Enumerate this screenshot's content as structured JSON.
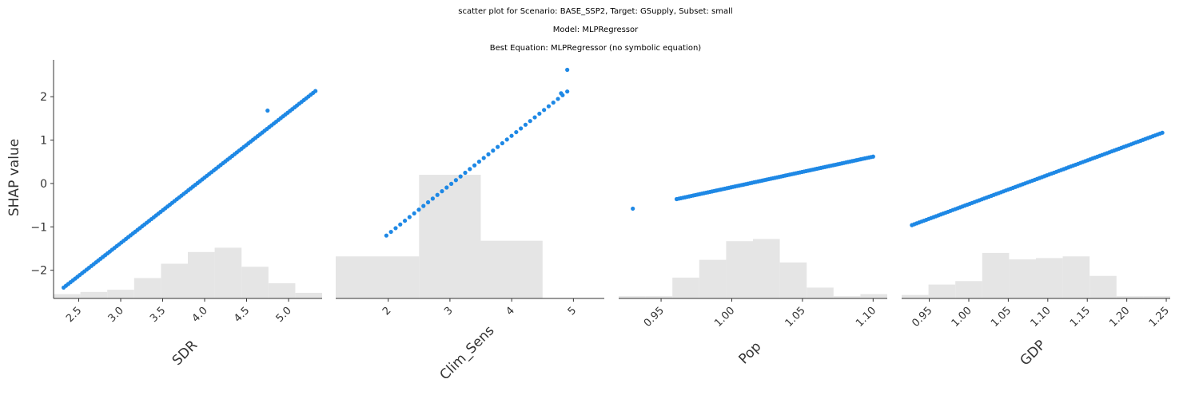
{
  "title": {
    "line1": "scatter plot for Scenario: BASE_SSP2, Target: GSupply, Subset: small",
    "line2": "Model: MLPRegressor",
    "line3": "Best Equation: MLPRegressor (no symbolic equation)"
  },
  "colors": {
    "points": "#1e88e5",
    "histogram": "#e5e5e5",
    "axis": "#333333"
  },
  "chart_data": [
    {
      "type": "scatter",
      "xlabel": "SDR",
      "ylabel": "SHAP value",
      "xlim": [
        2.2,
        5.4
      ],
      "ylim": [
        -2.65,
        2.85
      ],
      "xticks": [
        2.5,
        3.0,
        3.5,
        4.0,
        4.5,
        5.0
      ],
      "xtick_labels": [
        "2.5",
        "3.0",
        "3.5",
        "4.0",
        "4.5",
        "5.0"
      ],
      "yticks": [
        -2,
        -1,
        0,
        1,
        2
      ],
      "ytick_labels": [
        "−2",
        "−1",
        "0",
        "1",
        "2"
      ],
      "histogram": {
        "edges": [
          2.2,
          2.52,
          2.84,
          3.16,
          3.48,
          3.8,
          4.12,
          4.44,
          4.76,
          5.08,
          5.4
        ],
        "heights": [
          -2.55,
          -2.5,
          -2.45,
          -2.18,
          -1.85,
          -1.58,
          -1.48,
          -1.92,
          -2.3,
          -2.52
        ]
      },
      "points": {
        "line": {
          "x_start": 2.32,
          "x_end": 5.32,
          "y_start": -2.4,
          "y_end": 2.13,
          "count": 110
        },
        "extra": [
          [
            4.75,
            1.68
          ]
        ]
      }
    },
    {
      "type": "scatter",
      "xlabel": "Clim_Sens",
      "ylabel": "",
      "xlim": [
        1.15,
        5.5
      ],
      "ylim": [
        -2.65,
        2.85
      ],
      "xticks": [
        2,
        3,
        4,
        5
      ],
      "xtick_labels": [
        "2",
        "3",
        "4",
        "5"
      ],
      "histogram": {
        "edges": [
          1.15,
          2.5,
          3.5,
          4.5,
          5.5
        ],
        "heights": [
          -1.68,
          0.2,
          -1.32,
          -2.65
        ]
      },
      "points": {
        "line": {
          "x_start": 1.97,
          "x_end": 4.9,
          "y_start": -1.2,
          "y_end": 2.12,
          "count": 40
        },
        "extra": [
          [
            4.9,
            2.62
          ],
          [
            4.8,
            2.08
          ]
        ]
      }
    },
    {
      "type": "scatter",
      "xlabel": "Pop",
      "ylabel": "",
      "xlim": [
        0.92,
        1.11
      ],
      "ylim": [
        -2.65,
        2.85
      ],
      "xticks": [
        0.95,
        1.0,
        1.05,
        1.1
      ],
      "xtick_labels": [
        "0.95",
        "1.00",
        "1.05",
        "1.10"
      ],
      "histogram": {
        "edges": [
          0.92,
          0.939,
          0.958,
          0.977,
          0.996,
          1.015,
          1.034,
          1.053,
          1.072,
          1.091,
          1.11
        ],
        "heights": [
          -2.6,
          -2.6,
          -2.17,
          -1.76,
          -1.33,
          -1.28,
          -1.82,
          -2.4,
          -2.6,
          -2.55
        ]
      },
      "points": {
        "line": {
          "x_start": 0.961,
          "x_end": 1.1,
          "y_start": -0.36,
          "y_end": 0.62,
          "count": 95
        },
        "extra": [
          [
            0.93,
            -0.58
          ]
        ]
      }
    },
    {
      "type": "scatter",
      "xlabel": "GDP",
      "ylabel": "",
      "xlim": [
        0.915,
        1.255
      ],
      "ylim": [
        -2.65,
        2.85
      ],
      "xticks": [
        0.95,
        1.0,
        1.05,
        1.1,
        1.15,
        1.2,
        1.25
      ],
      "xtick_labels": [
        "0.95",
        "1.00",
        "1.05",
        "1.10",
        "1.15",
        "1.20",
        "1.25"
      ],
      "histogram": {
        "edges": [
          0.915,
          0.949,
          0.983,
          1.017,
          1.051,
          1.085,
          1.119,
          1.153,
          1.187,
          1.221,
          1.255
        ],
        "heights": [
          -2.57,
          -2.33,
          -2.25,
          -1.6,
          -1.75,
          -1.72,
          -1.68,
          -2.13,
          -2.6,
          -2.6
        ]
      },
      "points": {
        "line": {
          "x_start": 0.928,
          "x_end": 1.245,
          "y_start": -0.96,
          "y_end": 1.17,
          "count": 105
        },
        "extra": []
      }
    }
  ]
}
